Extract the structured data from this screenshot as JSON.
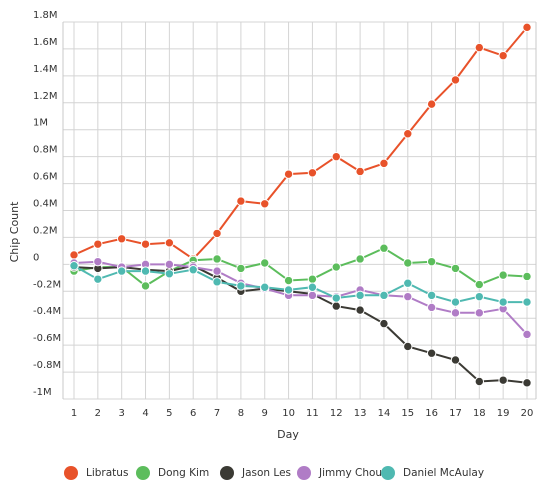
{
  "chart_data": {
    "type": "line",
    "title": "",
    "xlabel": "Day",
    "ylabel": "Chip Count",
    "categories": [
      "1",
      "2",
      "3",
      "4",
      "5",
      "6",
      "7",
      "8",
      "9",
      "10",
      "11",
      "12",
      "13",
      "14",
      "15",
      "16",
      "17",
      "18",
      "19",
      "20"
    ],
    "ylim": [
      -1000000,
      1800000
    ],
    "yticks": [
      {
        "value": 1800000,
        "label": "1.8M"
      },
      {
        "value": 1600000,
        "label": "1.6M"
      },
      {
        "value": 1400000,
        "label": "1.4M"
      },
      {
        "value": 1200000,
        "label": "1.2M"
      },
      {
        "value": 1000000,
        "label": "1M"
      },
      {
        "value": 800000,
        "label": "0.8M"
      },
      {
        "value": 600000,
        "label": "0.6M"
      },
      {
        "value": 400000,
        "label": "0.4M"
      },
      {
        "value": 200000,
        "label": "0.2M"
      },
      {
        "value": 0,
        "label": "0"
      },
      {
        "value": -200000,
        "label": "-0.2M"
      },
      {
        "value": -400000,
        "label": "-0.4M"
      },
      {
        "value": -600000,
        "label": "-0.6M"
      },
      {
        "value": -800000,
        "label": "-0.8M"
      },
      {
        "value": -1000000,
        "label": "-1M"
      }
    ],
    "grid": true,
    "legend_position": "bottom",
    "series": [
      {
        "name": "Libratus",
        "color": "#e8522a",
        "values": [
          70000,
          150000,
          190000,
          150000,
          160000,
          40000,
          230000,
          470000,
          450000,
          670000,
          680000,
          800000,
          690000,
          750000,
          970000,
          1190000,
          1370000,
          1610000,
          1550000,
          1760000
        ]
      },
      {
        "name": "Dong Kim",
        "color": "#5cbd5c",
        "values": [
          -50000,
          -20000,
          -20000,
          -160000,
          -50000,
          30000,
          40000,
          -30000,
          10000,
          -120000,
          -110000,
          -20000,
          40000,
          120000,
          10000,
          20000,
          -30000,
          -150000,
          -80000,
          -90000
        ]
      },
      {
        "name": "Jason Les",
        "color": "#3b3a34",
        "values": [
          -20000,
          -30000,
          -20000,
          -40000,
          -50000,
          -10000,
          -100000,
          -200000,
          -180000,
          -200000,
          -220000,
          -310000,
          -340000,
          -440000,
          -610000,
          -660000,
          -710000,
          -870000,
          -860000,
          -880000
        ]
      },
      {
        "name": "Jimmy Chou",
        "color": "#b07cc6",
        "values": [
          10000,
          20000,
          -20000,
          0,
          0,
          -20000,
          -50000,
          -140000,
          -180000,
          -230000,
          -230000,
          -240000,
          -190000,
          -230000,
          -240000,
          -320000,
          -360000,
          -360000,
          -330000,
          -520000
        ]
      },
      {
        "name": "Daniel McAulay",
        "color": "#4fb9b1",
        "values": [
          -10000,
          -110000,
          -50000,
          -50000,
          -70000,
          -40000,
          -130000,
          -160000,
          -170000,
          -190000,
          -170000,
          -250000,
          -230000,
          -230000,
          -140000,
          -230000,
          -280000,
          -240000,
          -280000,
          -280000
        ]
      }
    ]
  }
}
